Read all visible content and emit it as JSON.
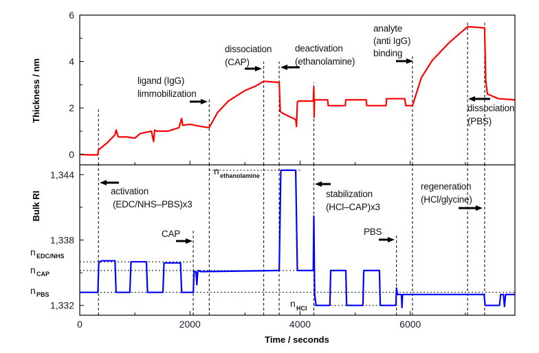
{
  "chart_data": [
    {
      "type": "line",
      "panel": "top",
      "ylabel": "Thickness / nm",
      "xlabel": "Time / seconds",
      "xlim": [
        0,
        7900
      ],
      "ylim": [
        -0.45,
        6
      ],
      "yticks": [
        0,
        2,
        4,
        6
      ],
      "ytick_labels": [
        "0",
        "2",
        "4",
        "6"
      ],
      "line_color": "#ff0000",
      "grid": false,
      "series": [
        {
          "x": [
            0,
            150,
            330,
            340,
            345,
            500,
            640,
            660,
            700,
            850,
            1000,
            1100,
            1300,
            1340,
            1360,
            1400,
            1600,
            1800,
            1850,
            1870,
            2000,
            2200,
            2350,
            2500,
            2700,
            3000,
            3200,
            3340,
            3620,
            3640,
            3700,
            3920,
            3935,
            3950,
            3970,
            4240,
            4250,
            4255,
            4262,
            4270,
            4300,
            4500,
            4510,
            4820,
            4830,
            5200,
            5210,
            5560,
            5570,
            5900,
            5920,
            6040,
            6200,
            6400,
            6700,
            7040,
            7350,
            7370,
            7400,
            7600,
            7900
          ],
          "y": [
            0,
            -0.02,
            -0.02,
            0.2,
            0.2,
            0.5,
            0.85,
            1.05,
            0.75,
            0.75,
            0.7,
            0.9,
            1.0,
            0.55,
            1.05,
            1.0,
            1.0,
            1.15,
            1.55,
            1.25,
            1.3,
            1.2,
            1.15,
            1.8,
            2.3,
            2.75,
            2.95,
            3.15,
            3.1,
            1.85,
            1.75,
            1.5,
            1.2,
            2.25,
            2.3,
            2.3,
            2.9,
            1.6,
            2.35,
            2.35,
            2.35,
            2.35,
            2.1,
            2.1,
            2.35,
            2.35,
            2.1,
            2.1,
            2.4,
            2.4,
            2.1,
            2.1,
            3.3,
            4.05,
            4.8,
            5.5,
            5.45,
            3.2,
            2.6,
            2.4,
            2.35
          ]
        }
      ],
      "event_lines": [
        {
          "x": 340,
          "from": -0.45,
          "to": 2
        },
        {
          "x": 2350,
          "from": -0.45,
          "to": 2.45
        },
        {
          "x": 3340,
          "from": -0.45,
          "to": 4
        },
        {
          "x": 3620,
          "from": -0.45,
          "to": 4
        },
        {
          "x": 4250,
          "from": -0.45,
          "to": 3.1
        },
        {
          "x": 6040,
          "from": -0.45,
          "to": 4.3
        },
        {
          "x": 7040,
          "from": -0.45,
          "to": 5.75
        },
        {
          "x": 7350,
          "from": -0.45,
          "to": 5.75
        }
      ]
    },
    {
      "type": "line",
      "panel": "bottom",
      "ylabel": "Bulk RI",
      "xlabel": "Time / seconds",
      "xlim": [
        0,
        7900
      ],
      "ylim": [
        1.3311,
        1.3449
      ],
      "xticks": [
        0,
        2000,
        4000,
        6000
      ],
      "xtick_labels": [
        "0",
        "2000",
        "4000",
        "6000"
      ],
      "yticks": [
        1.332,
        1.338,
        1.344
      ],
      "ytick_labels": [
        "1,332",
        "1,338",
        "1,344"
      ],
      "line_color": "#0000ff",
      "grid": false,
      "series": [
        {
          "x": [
            0,
            330,
            345,
            360,
            400,
            640,
            660,
            910,
            930,
            1210,
            1230,
            1510,
            1530,
            1830,
            1850,
            2060,
            2075,
            2110,
            2125,
            2140,
            2160,
            2200,
            3600,
            3620,
            3650,
            3920,
            3950,
            4240,
            4250,
            4265,
            4290,
            4540,
            4555,
            4830,
            4845,
            5140,
            5155,
            5440,
            5455,
            5740,
            5750,
            5770,
            5840,
            5850,
            5860,
            5900,
            7340,
            7360,
            7380,
            7620,
            7640,
            7690,
            7710,
            7730,
            7750,
            7900
          ],
          "y": [
            1.3332,
            1.3332,
            1.3358,
            1.336,
            1.3361,
            1.3361,
            1.3332,
            1.3332,
            1.336,
            1.336,
            1.3332,
            1.3332,
            1.3359,
            1.3359,
            1.3332,
            1.3332,
            1.3351,
            1.3351,
            1.3339,
            1.335,
            1.3352,
            1.3351,
            1.3352,
            1.3352,
            1.3444,
            1.3444,
            1.3352,
            1.3352,
            1.3402,
            1.333,
            1.332,
            1.332,
            1.3352,
            1.3352,
            1.332,
            1.332,
            1.3352,
            1.3352,
            1.332,
            1.332,
            1.3336,
            1.333,
            1.333,
            1.3318,
            1.333,
            1.333,
            1.333,
            1.332,
            1.332,
            1.332,
            1.333,
            1.333,
            1.3319,
            1.333,
            1.333,
            1.333
          ]
        }
      ],
      "reference_levels": [
        {
          "label": "n",
          "sub": "EDC/NHS",
          "y": 1.336,
          "x_from": 0,
          "x_to": 2060
        },
        {
          "label": "n",
          "sub": "CAP",
          "y": 1.3352,
          "x_from": 0,
          "x_to": 4250
        },
        {
          "label": "n",
          "sub": "PBS",
          "y": 1.3332,
          "x_from": 0,
          "x_to": 7900
        },
        {
          "label": "n",
          "sub": "ethanolamine",
          "y": 1.3444,
          "x_from": 2350,
          "x_to": 4000
        },
        {
          "label": "n",
          "sub": "HCl",
          "y": 1.332,
          "x_from": 4250,
          "x_to": 5750
        }
      ],
      "event_lines": [
        {
          "x": 340,
          "from": 1.3311,
          "to": 1.3449
        },
        {
          "x": 2060,
          "from": 1.3311,
          "to": 1.3389
        },
        {
          "x": 2350,
          "from": 1.3311,
          "to": 1.3449
        },
        {
          "x": 3340,
          "from": 1.3311,
          "to": 1.3449
        },
        {
          "x": 3620,
          "from": 1.3311,
          "to": 1.3449
        },
        {
          "x": 4250,
          "from": 1.3311,
          "to": 1.3449
        },
        {
          "x": 5750,
          "from": 1.3311,
          "to": 1.3385
        },
        {
          "x": 6040,
          "from": 1.3311,
          "to": 1.3449
        },
        {
          "x": 7040,
          "from": 1.3311,
          "to": 1.3449
        },
        {
          "x": 7350,
          "from": 1.3311,
          "to": 1.3449
        }
      ]
    }
  ],
  "annotations": {
    "ligand": [
      "ligand (IgG)",
      "limmobilization"
    ],
    "dissociation_cap": [
      "dissociation",
      "(CAP)"
    ],
    "deactivation": [
      "deactivation",
      "(ethanolamine)"
    ],
    "analyte": [
      "analyte",
      "(anti IgG)",
      "binding"
    ],
    "dissociation_pbs": [
      "dissociation",
      "(PBS)"
    ],
    "activation": [
      "activation",
      "(EDC/NHS–PBS)x3"
    ],
    "cap": [
      "CAP"
    ],
    "stabilization": [
      "stabilization",
      "(HCl–CAP)x3"
    ],
    "pbs": [
      "PBS"
    ],
    "regeneration": [
      "regeneration",
      "(HCl/glycine)"
    ]
  },
  "axes": {
    "top_ylabel": "Thickness / nm",
    "bottom_ylabel": "Bulk RI",
    "xlabel": "Time / seconds"
  }
}
